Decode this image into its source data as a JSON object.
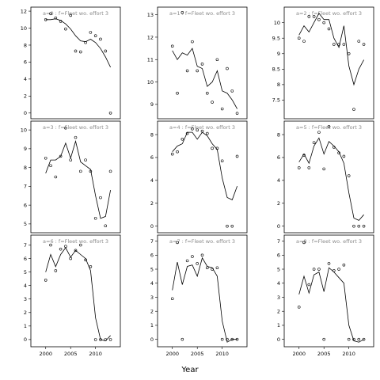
{
  "chart_data": {
    "type": "scatter",
    "xlabel": "Year",
    "layout": "3x3 grid, columns share x axis",
    "xlim": [
      1997.5,
      2014.5
    ],
    "xticks": [
      2000,
      2005,
      2010
    ],
    "panels": [
      {
        "title": "a=0 : f=Fleet wo. effort 3",
        "ylim": [
          -0.3,
          12.1
        ],
        "yticks": [
          0,
          2,
          4,
          6,
          8,
          10,
          12
        ],
        "x": [
          2000,
          2001,
          2002,
          2003,
          2004,
          2005,
          2006,
          2007,
          2008,
          2009,
          2010,
          2011,
          2012,
          2013
        ],
        "points": [
          11.0,
          11.7,
          11.2,
          10.8,
          9.9,
          11.5,
          7.3,
          7.2,
          8.3,
          9.5,
          9.1,
          8.7,
          7.3,
          0.0
        ],
        "line": [
          11.0,
          11.0,
          11.1,
          10.9,
          10.5,
          9.9,
          9.1,
          8.5,
          8.4,
          8.7,
          8.3,
          7.6,
          6.6,
          5.4
        ]
      },
      {
        "title": "a=3 : f=Fleet wo. effort 3",
        "ylim": [
          4.7,
          10.3
        ],
        "yticks": [
          5,
          6,
          7,
          8,
          9,
          10
        ],
        "x": [
          2000,
          2001,
          2002,
          2003,
          2004,
          2005,
          2006,
          2007,
          2008,
          2009,
          2010,
          2011,
          2012,
          2013
        ],
        "points": [
          8.5,
          8.1,
          7.5,
          8.6,
          10.1,
          8.4,
          9.6,
          7.8,
          8.4,
          7.8,
          5.3,
          6.4,
          4.9,
          7.8
        ],
        "line": [
          7.7,
          8.4,
          8.4,
          8.6,
          9.3,
          8.5,
          9.4,
          8.3,
          8.1,
          7.9,
          6.5,
          5.3,
          5.4,
          6.8
        ]
      },
      {
        "title": "a=6 : f=Fleet wo. effort 3",
        "ylim": [
          -0.3,
          7.5
        ],
        "yticks": [
          0,
          1,
          2,
          3,
          4,
          5,
          6,
          7
        ],
        "x": [
          2000,
          2001,
          2002,
          2003,
          2004,
          2005,
          2006,
          2007,
          2008,
          2009,
          2010,
          2011,
          2012,
          2013
        ],
        "points": [
          4.4,
          7.0,
          5.1,
          6.7,
          6.9,
          6.0,
          6.6,
          7.0,
          5.9,
          5.4,
          0.0,
          0.0,
          0.0,
          0.0
        ],
        "line": [
          5.0,
          6.3,
          5.4,
          6.3,
          6.8,
          6.1,
          6.6,
          6.3,
          6.0,
          5.1,
          1.6,
          0.0,
          -0.1,
          0.3
        ]
      },
      {
        "title": "a=1 : f=Fleet wo. effort 3",
        "ylim": [
          8.5,
          13.2
        ],
        "yticks": [
          9,
          10,
          11,
          12,
          13
        ],
        "x": [
          2000,
          2001,
          2002,
          2003,
          2004,
          2005,
          2006,
          2007,
          2008,
          2009,
          2010,
          2011,
          2012,
          2013
        ],
        "points": [
          11.6,
          9.5,
          13.1,
          10.5,
          11.8,
          10.5,
          10.8,
          9.5,
          9.1,
          11.0,
          8.8,
          10.6,
          9.6,
          8.6
        ],
        "line": [
          11.4,
          11.0,
          11.3,
          11.2,
          11.5,
          10.7,
          10.6,
          9.8,
          10.0,
          10.5,
          9.6,
          9.5,
          9.2,
          8.8
        ]
      },
      {
        "title": "a=4 : f=Fleet wo. effort 3",
        "ylim": [
          -0.3,
          8.9
        ],
        "yticks": [
          0,
          2,
          4,
          6,
          8
        ],
        "x": [
          2000,
          2001,
          2002,
          2003,
          2004,
          2005,
          2006,
          2007,
          2008,
          2009,
          2010,
          2011,
          2012,
          2013
        ],
        "points": [
          6.3,
          6.5,
          7.6,
          8.1,
          8.5,
          8.4,
          8.3,
          8.1,
          6.8,
          6.8,
          5.7,
          0.0,
          0.0,
          6.1
        ],
        "line": [
          6.5,
          7.0,
          7.2,
          8.2,
          8.2,
          7.6,
          8.2,
          7.9,
          7.2,
          6.7,
          4.2,
          2.5,
          2.3,
          3.5
        ]
      },
      {
        "title": "a=7 : f=Fleet wo. effort 3",
        "ylim": [
          -0.3,
          7.2
        ],
        "yticks": [
          0,
          1,
          2,
          3,
          4,
          5,
          6,
          7
        ],
        "x": [
          2000,
          2001,
          2002,
          2003,
          2004,
          2005,
          2006,
          2007,
          2008,
          2009,
          2010,
          2011,
          2012,
          2013
        ],
        "points": [
          2.9,
          6.9,
          0.0,
          5.6,
          5.9,
          5.4,
          6.0,
          5.1,
          5.0,
          5.1,
          0.0,
          0.0,
          0.0,
          0.0
        ],
        "line": [
          3.5,
          5.5,
          3.9,
          5.2,
          5.3,
          4.5,
          5.8,
          5.2,
          5.1,
          4.5,
          1.3,
          -0.2,
          0.0,
          0.0
        ]
      },
      {
        "title": "a=2 : f=Fleet wo. effort 3",
        "ylim": [
          7.0,
          10.4
        ],
        "yticks": [
          7.5,
          8.0,
          8.5,
          9.0,
          9.5,
          10.0
        ],
        "x": [
          2000,
          2001,
          2002,
          2003,
          2004,
          2005,
          2006,
          2007,
          2008,
          2009,
          2010,
          2011,
          2012,
          2013
        ],
        "points": [
          9.5,
          9.4,
          10.2,
          10.2,
          10.1,
          10.0,
          9.8,
          9.3,
          9.3,
          9.3,
          9.0,
          7.2,
          9.4,
          9.3
        ],
        "line": [
          9.6,
          9.9,
          9.7,
          10.0,
          10.3,
          10.1,
          10.1,
          9.5,
          9.2,
          9.9,
          8.6,
          8.0,
          8.5,
          8.8
        ]
      },
      {
        "title": "a=5 : f=Fleet wo. effort 3",
        "ylim": [
          -0.3,
          8.9
        ],
        "yticks": [
          0,
          2,
          4,
          6,
          8
        ],
        "x": [
          2000,
          2001,
          2002,
          2003,
          2004,
          2005,
          2006,
          2007,
          2008,
          2009,
          2010,
          2011,
          2012,
          2013
        ],
        "points": [
          5.1,
          6.2,
          5.1,
          7.3,
          8.2,
          5.0,
          8.7,
          6.9,
          6.4,
          6.1,
          4.4,
          0.0,
          0.0,
          0.0
        ],
        "line": [
          5.6,
          6.3,
          5.5,
          7.0,
          7.7,
          6.3,
          7.4,
          7.0,
          6.5,
          5.5,
          2.9,
          0.7,
          0.5,
          1.0
        ]
      },
      {
        "title": "a=8 : f=Fleet wo. effort 3",
        "ylim": [
          -0.3,
          7.2
        ],
        "yticks": [
          0,
          1,
          2,
          3,
          4,
          5,
          6,
          7
        ],
        "x": [
          2000,
          2001,
          2002,
          2003,
          2004,
          2005,
          2006,
          2007,
          2008,
          2009,
          2010,
          2011,
          2012,
          2013
        ],
        "points": [
          2.3,
          6.9,
          3.9,
          5.0,
          5.0,
          0.0,
          5.4,
          4.9,
          5.0,
          5.3,
          0.0,
          0.0,
          0.0,
          0.0
        ],
        "line": [
          3.2,
          4.5,
          3.3,
          4.6,
          4.8,
          3.4,
          5.1,
          4.8,
          4.4,
          4.0,
          1.0,
          -0.1,
          -0.2,
          0.0
        ]
      }
    ]
  }
}
